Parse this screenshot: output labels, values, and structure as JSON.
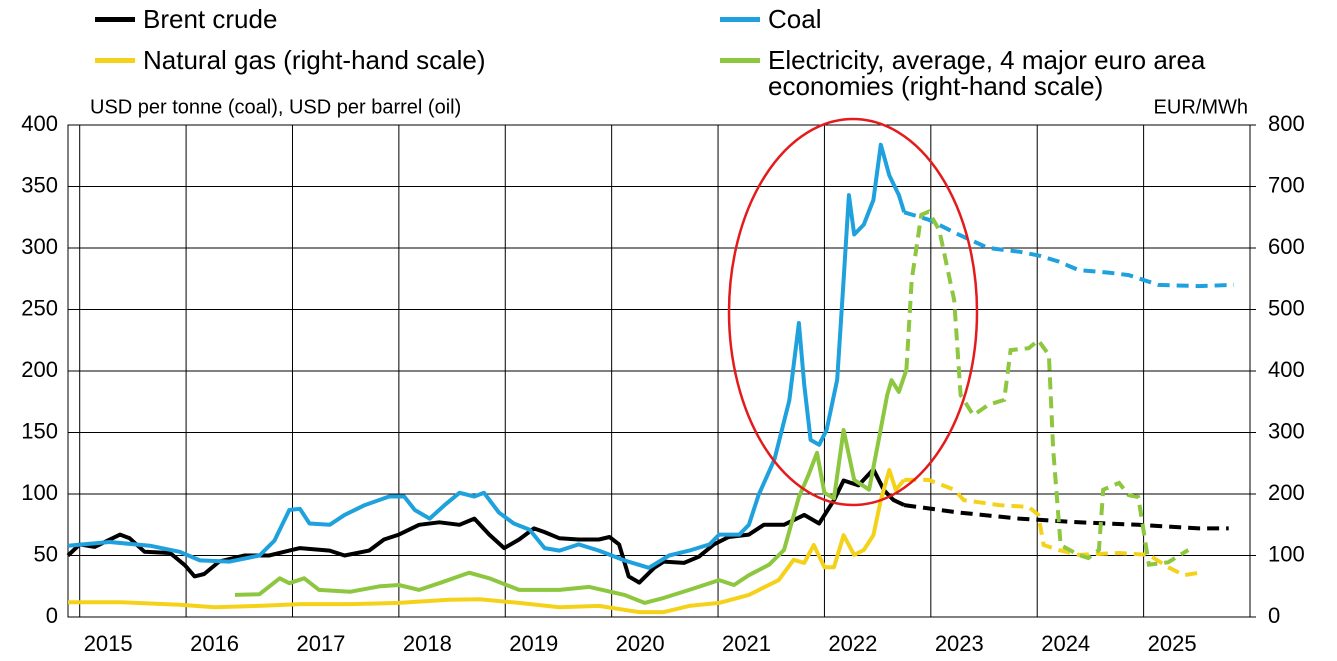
{
  "chart_data": {
    "type": "line",
    "y_label": "USD per tonne (coal), USD per barrel (oil)",
    "y2_label": "EUR/MWh",
    "xlim": [
      2014.89,
      2026.0
    ],
    "xticks": [
      2015,
      2016,
      2017,
      2018,
      2019,
      2020,
      2021,
      2022,
      2023,
      2024,
      2025
    ],
    "ylim": [
      0,
      400
    ],
    "yticks": [
      0,
      50,
      100,
      150,
      200,
      250,
      300,
      350,
      400
    ],
    "y2lim": [
      0,
      800
    ],
    "y2ticks": [
      0,
      100,
      200,
      300,
      400,
      500,
      600,
      700,
      800
    ],
    "grid": true,
    "legend": "top",
    "series": [
      {
        "name": "Brent crude",
        "color": "#000000",
        "axis": "y",
        "x": [
          2014.89,
          2015.0,
          2015.14,
          2015.38,
          2015.47,
          2015.61,
          2015.85,
          2015.99,
          2016.08,
          2016.17,
          2016.31,
          2016.55,
          2016.78,
          2016.97,
          2017.07,
          2017.35,
          2017.49,
          2017.72,
          2017.86,
          2018.0,
          2018.19,
          2018.38,
          2018.57,
          2018.71,
          2018.85,
          2018.99,
          2019.13,
          2019.27,
          2019.37,
          2019.51,
          2019.69,
          2019.88,
          2019.98,
          2020.07,
          2020.16,
          2020.26,
          2020.4,
          2020.49,
          2020.68,
          2020.82,
          2020.96,
          2021.1,
          2021.29,
          2021.43,
          2021.62,
          2021.81,
          2021.95,
          2022.09,
          2022.18,
          2022.32,
          2022.46,
          2022.56,
          2022.65,
          2022.75
        ],
        "values": [
          50,
          59,
          57,
          67,
          64,
          53,
          52,
          42,
          33,
          35,
          45,
          50,
          50,
          54,
          56,
          54,
          50,
          54,
          63,
          67,
          75,
          77,
          75,
          80,
          67,
          56,
          63,
          72,
          69,
          64,
          63,
          63,
          65,
          59,
          33,
          28,
          40,
          45,
          44,
          49,
          59,
          65,
          67,
          75,
          75,
          83,
          76,
          95,
          111,
          107,
          120,
          103,
          95,
          91
        ],
        "projection": {
          "x": [
            2022.75,
            2023.26,
            2023.83,
            2024.39,
            2024.95,
            2025.52,
            2025.8
          ],
          "values": [
            91,
            85,
            80,
            77,
            75,
            72,
            72
          ]
        }
      },
      {
        "name": "Natural gas (right-hand scale)",
        "color": "#f5d21a",
        "axis": "y2",
        "x": [
          2014.89,
          2015.38,
          2015.94,
          2016.27,
          2016.69,
          2017.07,
          2017.54,
          2018.0,
          2018.47,
          2018.76,
          2019.13,
          2019.51,
          2019.88,
          2020.26,
          2020.49,
          2020.73,
          2021.01,
          2021.29,
          2021.57,
          2021.71,
          2021.81,
          2021.9,
          2022.0,
          2022.09,
          2022.18,
          2022.28,
          2022.37,
          2022.46,
          2022.53,
          2022.61,
          2022.67,
          2022.75
        ],
        "values": [
          24,
          24,
          20,
          16,
          18,
          21,
          21,
          23,
          28,
          29,
          23,
          16,
          18,
          8,
          8,
          18,
          23,
          36,
          60,
          93,
          88,
          117,
          81,
          81,
          133,
          101,
          109,
          133,
          190,
          239,
          207,
          223
        ],
        "projection": {
          "x": [
            2022.75,
            2022.98,
            2023.22,
            2023.31,
            2023.64,
            2023.92,
            2024.01,
            2024.06,
            2024.2,
            2024.39,
            2024.77,
            2025.05,
            2025.23,
            2025.38,
            2025.56
          ],
          "values": [
            223,
            223,
            207,
            190,
            182,
            179,
            166,
            117,
            109,
            101,
            104,
            101,
            81,
            68,
            73
          ]
        }
      },
      {
        "name": "Coal",
        "color": "#1ea1dc",
        "axis": "y",
        "x": [
          2014.89,
          2015.28,
          2015.66,
          2015.94,
          2016.13,
          2016.41,
          2016.69,
          2016.83,
          2016.97,
          2017.07,
          2017.16,
          2017.35,
          2017.49,
          2017.68,
          2017.91,
          2018.05,
          2018.15,
          2018.29,
          2018.43,
          2018.57,
          2018.71,
          2018.8,
          2018.94,
          2019.08,
          2019.23,
          2019.37,
          2019.51,
          2019.69,
          2019.88,
          2020.12,
          2020.35,
          2020.54,
          2020.73,
          2020.92,
          2021.01,
          2021.2,
          2021.29,
          2021.38,
          2021.53,
          2021.67,
          2021.76,
          2021.81,
          2021.87,
          2021.95,
          2022.02,
          2022.12,
          2022.18,
          2022.23,
          2022.28,
          2022.37,
          2022.46,
          2022.53,
          2022.61,
          2022.7,
          2022.75
        ],
        "values": [
          58,
          61,
          58,
          53,
          46,
          45,
          50,
          62,
          87,
          88,
          76,
          75,
          83,
          91,
          98,
          98,
          87,
          80,
          91,
          101,
          98,
          101,
          85,
          76,
          71,
          56,
          54,
          59,
          54,
          46,
          40,
          50,
          54,
          59,
          67,
          67,
          75,
          99,
          128,
          176,
          239,
          189,
          144,
          140,
          152,
          193,
          274,
          343,
          311,
          319,
          339,
          384,
          359,
          343,
          329
        ],
        "projection": {
          "x": [
            2022.75,
            2022.98,
            2023.26,
            2023.54,
            2023.83,
            2024.01,
            2024.2,
            2024.39,
            2024.67,
            2024.86,
            2025.14,
            2025.52,
            2025.85
          ],
          "values": [
            329,
            323,
            311,
            300,
            297,
            294,
            289,
            282,
            280,
            278,
            270,
            269,
            270
          ]
        }
      },
      {
        "name": "Electricity, average, 4 major euro area economies (right-hand scale)",
        "color": "#8dc63f",
        "axis": "y2",
        "x": [
          2016.46,
          2016.69,
          2016.88,
          2016.97,
          2017.11,
          2017.25,
          2017.54,
          2017.82,
          2018.0,
          2018.19,
          2018.38,
          2018.66,
          2018.85,
          2019.13,
          2019.51,
          2019.79,
          2020.12,
          2020.31,
          2020.49,
          2020.73,
          2021.01,
          2021.15,
          2021.29,
          2021.48,
          2021.62,
          2021.76,
          2021.85,
          2021.93,
          2022.0,
          2022.09,
          2022.18,
          2022.28,
          2022.42,
          2022.51,
          2022.59,
          2022.63,
          2022.7,
          2022.77
        ],
        "values": [
          36,
          37,
          63,
          55,
          63,
          44,
          41,
          50,
          52,
          44,
          55,
          72,
          63,
          44,
          44,
          49,
          36,
          23,
          31,
          44,
          60,
          52,
          68,
          85,
          109,
          195,
          231,
          267,
          202,
          193,
          304,
          223,
          207,
          288,
          361,
          385,
          366,
          402
        ],
        "projection": {
          "x": [
            2022.77,
            2022.82,
            2022.91,
            2022.98,
            2023.08,
            2023.22,
            2023.28,
            2023.4,
            2023.54,
            2023.69,
            2023.75,
            2023.92,
            2024.01,
            2024.11,
            2024.15,
            2024.22,
            2024.39,
            2024.48,
            2024.58,
            2024.62,
            2024.77,
            2024.86,
            2024.95,
            2025.05,
            2025.23,
            2025.42
          ],
          "values": [
            402,
            548,
            654,
            659,
            629,
            515,
            361,
            328,
            345,
            353,
            434,
            437,
            450,
            426,
            272,
            117,
            101,
            96,
            109,
            207,
            218,
            198,
            195,
            85,
            89,
            109
          ]
        }
      }
    ]
  }
}
